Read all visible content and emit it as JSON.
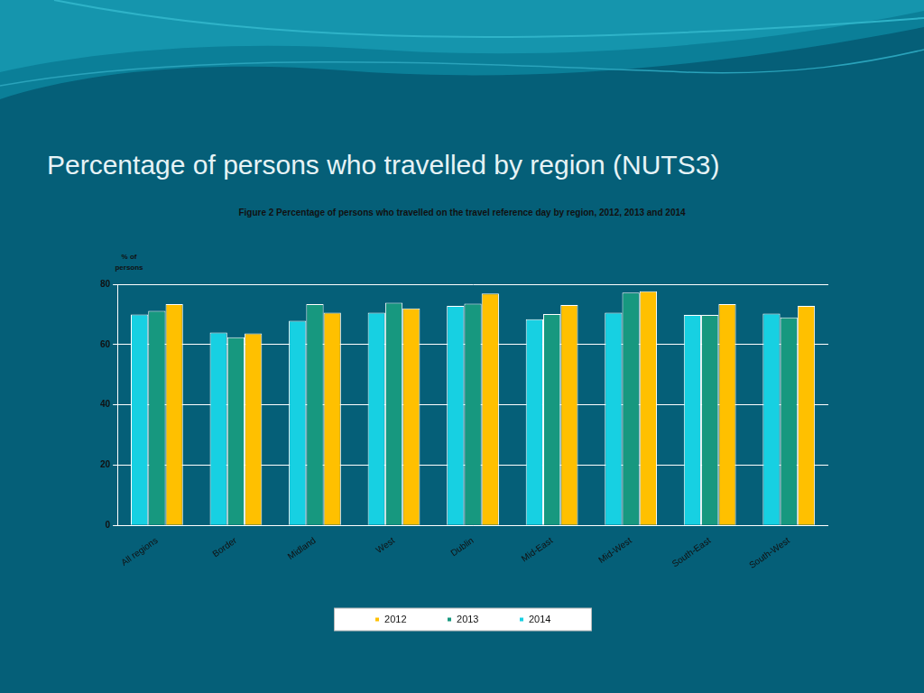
{
  "heading": "Percentage of persons who travelled by region (NUTS3)",
  "chart_data": {
    "type": "bar",
    "title": "Figure 2 Percentage of persons who travelled on the travel reference day by region, 2012, 2013 and 2014",
    "ylabel": "% of persons",
    "categories": [
      "All regions",
      "Border",
      "Midland",
      "West",
      "Dublin",
      "Mid-East",
      "Mid-West",
      "South-East",
      "South-West"
    ],
    "series": [
      {
        "name": "2014",
        "color": "#17d0e2",
        "values": [
          70.0,
          64.0,
          67.9,
          70.6,
          72.8,
          68.4,
          70.6,
          69.8,
          70.3
        ]
      },
      {
        "name": "2013",
        "color": "#17987f",
        "values": [
          71.2,
          62.4,
          73.4,
          73.9,
          73.6,
          70.1,
          77.2,
          69.8,
          69.0
        ]
      },
      {
        "name": "2012",
        "color": "#ffc000",
        "values": [
          73.4,
          63.7,
          70.6,
          72.0,
          76.9,
          73.1,
          77.7,
          73.4,
          72.8
        ]
      }
    ],
    "ylim": [
      0,
      80
    ],
    "yticks": [
      0,
      20,
      40,
      60,
      80
    ],
    "grid": true,
    "legend": "bottom"
  }
}
